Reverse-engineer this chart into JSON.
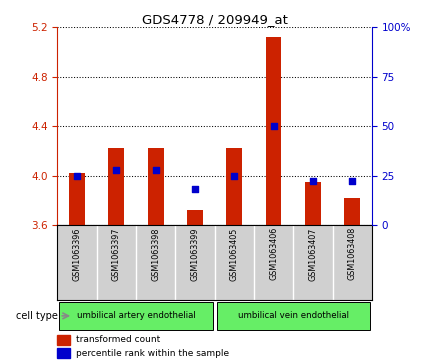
{
  "title": "GDS4778 / 209949_at",
  "samples": [
    "GSM1063396",
    "GSM1063397",
    "GSM1063398",
    "GSM1063399",
    "GSM1063405",
    "GSM1063406",
    "GSM1063407",
    "GSM1063408"
  ],
  "red_values": [
    4.02,
    4.22,
    4.22,
    3.72,
    4.22,
    5.12,
    3.95,
    3.82
  ],
  "blue_pct": [
    25,
    28,
    28,
    18,
    25,
    50,
    22,
    22
  ],
  "ylim_left": [
    3.6,
    5.2
  ],
  "ylim_right": [
    0,
    100
  ],
  "yticks_left": [
    3.6,
    4.0,
    4.4,
    4.8,
    5.2
  ],
  "yticks_right": [
    0,
    25,
    50,
    75,
    100
  ],
  "group1_label": "umbilical artery endothelial",
  "group2_label": "umbilical vein endothelial",
  "cell_type_label": "cell type",
  "legend_red": "transformed count",
  "legend_blue": "percentile rank within the sample",
  "bar_color": "#cc2200",
  "dot_color": "#0000cc",
  "cell_bg": "#66ee66",
  "sample_bg": "#d0d0d0",
  "left_tick_color": "#cc2200",
  "right_tick_color": "#0000cc"
}
